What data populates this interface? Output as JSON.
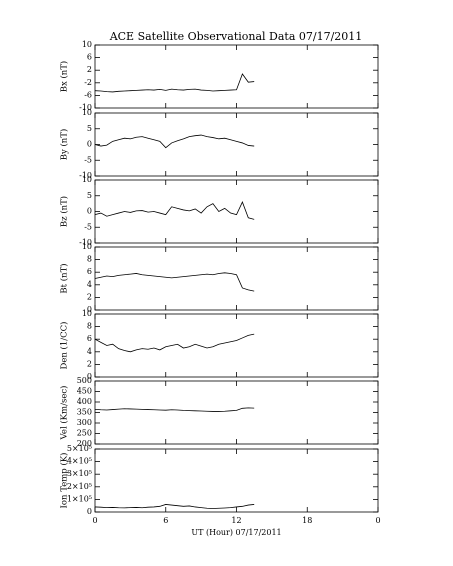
{
  "chart_data": [
    {
      "type": "line",
      "title": "ACE Satellite Observational Data   07/17/2011",
      "ylabel": "Bx (nT)",
      "color": "#000000",
      "grid": false,
      "x": [
        0,
        0.5,
        1,
        1.5,
        2,
        2.5,
        3,
        3.5,
        4,
        4.5,
        5,
        5.5,
        6,
        6.5,
        7,
        7.5,
        8,
        8.5,
        9,
        9.5,
        10,
        10.5,
        11,
        11.5,
        12,
        12.5,
        13,
        13.5
      ],
      "values": [
        -4.5,
        -4.6,
        -4.8,
        -4.9,
        -4.7,
        -4.6,
        -4.5,
        -4.4,
        -4.3,
        -4.2,
        -4.3,
        -4.1,
        -4.4,
        -4.0,
        -4.2,
        -4.3,
        -4.1,
        -4.0,
        -4.3,
        -4.4,
        -4.6,
        -4.5,
        -4.4,
        -4.3,
        -4.2,
        0.8,
        -1.8,
        -1.6
      ],
      "xlim": [
        0,
        24
      ],
      "xticks": [
        0,
        6,
        12,
        18,
        {
          "value": 24,
          "label": "0"
        }
      ],
      "ylim": [
        -10,
        10
      ],
      "yticks": [
        -10,
        -6,
        -2,
        2,
        6,
        10
      ]
    },
    {
      "type": "line",
      "ylabel": "By (nT)",
      "color": "#000000",
      "grid": false,
      "x": [
        0,
        0.5,
        1,
        1.5,
        2,
        2.5,
        3,
        3.5,
        4,
        4.5,
        5,
        5.5,
        6,
        6.5,
        7,
        7.5,
        8,
        8.5,
        9,
        9.5,
        10,
        10.5,
        11,
        11.5,
        12,
        12.5,
        13,
        13.5
      ],
      "values": [
        0,
        -0.5,
        -0.2,
        1,
        1.5,
        2,
        1.8,
        2.3,
        2.5,
        2,
        1.5,
        1,
        -1,
        0.5,
        1.2,
        1.8,
        2.5,
        2.8,
        3,
        2.5,
        2.2,
        1.8,
        2,
        1.5,
        1,
        0.5,
        -0.3,
        -0.5
      ],
      "xlim": [
        0,
        24
      ],
      "xticks": [
        0,
        6,
        12,
        18,
        {
          "value": 24,
          "label": "0"
        }
      ],
      "ylim": [
        -10,
        10
      ],
      "yticks": [
        -10,
        -5,
        0,
        5,
        10
      ]
    },
    {
      "type": "line",
      "ylabel": "Bz (nT)",
      "color": "#000000",
      "grid": false,
      "x": [
        0,
        0.5,
        1,
        1.5,
        2,
        2.5,
        3,
        3.5,
        4,
        4.5,
        5,
        5.5,
        6,
        6.5,
        7,
        7.5,
        8,
        8.5,
        9,
        9.5,
        10,
        10.5,
        11,
        11.5,
        12,
        12.5,
        13,
        13.5
      ],
      "values": [
        -1,
        -0.5,
        -1.5,
        -1,
        -0.5,
        0,
        -0.3,
        0.2,
        0.3,
        -0.2,
        0,
        -0.5,
        -1,
        1.5,
        1,
        0.5,
        0.2,
        0.8,
        -0.5,
        1.5,
        2.5,
        0,
        1,
        -0.5,
        -1,
        3,
        -2,
        -2.5
      ],
      "xlim": [
        0,
        24
      ],
      "xticks": [
        0,
        6,
        12,
        18,
        {
          "value": 24,
          "label": "0"
        }
      ],
      "ylim": [
        -10,
        10
      ],
      "yticks": [
        -10,
        -5,
        0,
        5,
        10
      ]
    },
    {
      "type": "line",
      "ylabel": "Bt (nT)",
      "color": "#000000",
      "grid": false,
      "x": [
        0,
        0.5,
        1,
        1.5,
        2,
        2.5,
        3,
        3.5,
        4,
        4.5,
        5,
        5.5,
        6,
        6.5,
        7,
        7.5,
        8,
        8.5,
        9,
        9.5,
        10,
        10.5,
        11,
        11.5,
        12,
        12.5,
        13,
        13.5
      ],
      "values": [
        5,
        5.2,
        5.4,
        5.3,
        5.5,
        5.6,
        5.7,
        5.8,
        5.6,
        5.5,
        5.4,
        5.3,
        5.2,
        5.1,
        5.2,
        5.3,
        5.4,
        5.5,
        5.6,
        5.7,
        5.6,
        5.8,
        5.9,
        5.8,
        5.6,
        3.5,
        3.2,
        3.0
      ],
      "xlim": [
        0,
        24
      ],
      "xticks": [
        0,
        6,
        12,
        18,
        {
          "value": 24,
          "label": "0"
        }
      ],
      "ylim": [
        0,
        10
      ],
      "yticks": [
        0,
        2,
        4,
        6,
        8,
        10
      ]
    },
    {
      "type": "line",
      "ylabel": "Den (1/CC)",
      "color": "#000000",
      "grid": false,
      "x": [
        0,
        0.5,
        1,
        1.5,
        2,
        2.5,
        3,
        3.5,
        4,
        4.5,
        5,
        5.5,
        6,
        6.5,
        7,
        7.5,
        8,
        8.5,
        9,
        9.5,
        10,
        10.5,
        11,
        11.5,
        12,
        12.5,
        13,
        13.5
      ],
      "values": [
        6,
        5.5,
        5,
        5.2,
        4.5,
        4.2,
        4,
        4.3,
        4.5,
        4.4,
        4.6,
        4.3,
        4.8,
        5,
        5.2,
        4.6,
        4.8,
        5.2,
        4.9,
        4.6,
        4.8,
        5.2,
        5.4,
        5.6,
        5.8,
        6.2,
        6.6,
        6.8
      ],
      "xlim": [
        0,
        24
      ],
      "xticks": [
        0,
        6,
        12,
        18,
        {
          "value": 24,
          "label": "0"
        }
      ],
      "ylim": [
        0,
        10
      ],
      "yticks": [
        0,
        2,
        4,
        6,
        8,
        10
      ]
    },
    {
      "type": "line",
      "ylabel": "Vel (Km/sec)",
      "color": "#000000",
      "grid": false,
      "x": [
        0,
        0.5,
        1,
        1.5,
        2,
        2.5,
        3,
        3.5,
        4,
        4.5,
        5,
        5.5,
        6,
        6.5,
        7,
        7.5,
        8,
        8.5,
        9,
        9.5,
        10,
        10.5,
        11,
        11.5,
        12,
        12.5,
        13,
        13.5
      ],
      "values": [
        365,
        363,
        362,
        364,
        366,
        368,
        367,
        366,
        365,
        364,
        363,
        362,
        361,
        363,
        362,
        360,
        359,
        358,
        357,
        356,
        355,
        355,
        356,
        358,
        360,
        370,
        372,
        371
      ],
      "xlim": [
        0,
        24
      ],
      "xticks": [
        0,
        6,
        12,
        18,
        {
          "value": 24,
          "label": "0"
        }
      ],
      "ylim": [
        200,
        500
      ],
      "yticks": [
        200,
        250,
        300,
        350,
        400,
        450,
        500
      ]
    },
    {
      "type": "line",
      "ylabel": "Ion Temp (K)",
      "xlabel": "UT (Hour)   07/17/2011",
      "color": "#000000",
      "grid": false,
      "x": [
        0,
        0.5,
        1,
        1.5,
        2,
        2.5,
        3,
        3.5,
        4,
        4.5,
        5,
        5.5,
        6,
        6.5,
        7,
        7.5,
        8,
        8.5,
        9,
        9.5,
        10,
        10.5,
        11,
        11.5,
        12,
        12.5,
        13,
        13.5
      ],
      "values": [
        40000,
        38000,
        35000,
        36000,
        34000,
        33000,
        35000,
        36000,
        34000,
        38000,
        40000,
        45000,
        60000,
        55000,
        50000,
        45000,
        48000,
        40000,
        35000,
        30000,
        28000,
        30000,
        32000,
        35000,
        40000,
        45000,
        55000,
        60000
      ],
      "xlim": [
        0,
        24
      ],
      "xticks": [
        0,
        6,
        12,
        18,
        {
          "value": 24,
          "label": "0"
        }
      ],
      "ylim": [
        0,
        500000
      ],
      "yticks": [
        0,
        {
          "value": 100000,
          "label": "1×10⁵"
        },
        {
          "value": 200000,
          "label": "2×10⁵"
        },
        {
          "value": 300000,
          "label": "3×10⁵"
        },
        {
          "value": 400000,
          "label": "4×10⁵"
        },
        {
          "value": 500000,
          "label": "5×10⁵"
        }
      ]
    }
  ]
}
